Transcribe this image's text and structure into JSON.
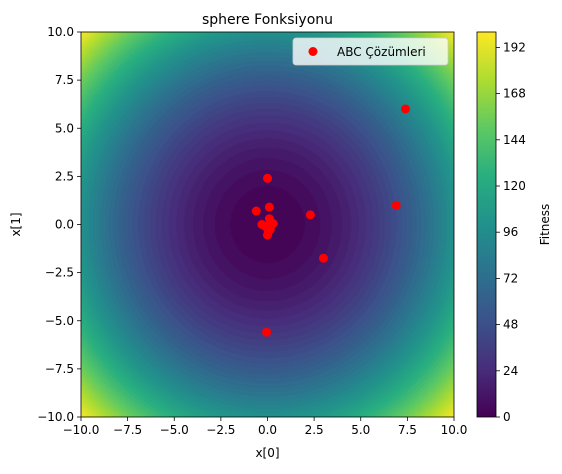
{
  "chart_data": {
    "type": "scatter",
    "background": "contourf",
    "title": "sphere Fonksiyonu",
    "xlabel": "x[0]",
    "ylabel": "x[1]",
    "xlim": [
      -10,
      10
    ],
    "ylim": [
      -10,
      10
    ],
    "xticks": [
      -10,
      -7.5,
      -5,
      -2.5,
      0,
      2.5,
      5,
      7.5,
      10
    ],
    "yticks": [
      -10,
      -7.5,
      -5,
      -2.5,
      0,
      2.5,
      5,
      7.5,
      10
    ],
    "xtick_labels": [
      "−10.0",
      "−7.5",
      "−5.0",
      "−2.5",
      "0.0",
      "2.5",
      "5.0",
      "7.5",
      "10.0"
    ],
    "ytick_labels": [
      "−10.0",
      "−7.5",
      "−5.0",
      "−2.5",
      "0.0",
      "2.5",
      "5.0",
      "7.5",
      "10.0"
    ],
    "grid": false,
    "colormap": "viridis",
    "colorbar": {
      "label": "Fitness",
      "range": [
        0,
        200
      ],
      "ticks": [
        0,
        24,
        48,
        72,
        96,
        120,
        144,
        168,
        192
      ],
      "tick_labels": [
        "0",
        "24",
        "48",
        "72",
        "96",
        "120",
        "144",
        "168",
        "192"
      ]
    },
    "legend": {
      "position": "top-right"
    },
    "series": [
      {
        "name": "ABC Çözümleri",
        "color": "#ff0000",
        "x": [
          7.4,
          6.9,
          2.3,
          3.0,
          0.0,
          0.1,
          -0.6,
          -0.3,
          0.1,
          0.3,
          -0.1,
          0.15,
          0.0,
          0.05,
          -0.05
        ],
        "y": [
          6.0,
          1.0,
          0.5,
          -1.75,
          2.4,
          0.9,
          0.7,
          0.0,
          0.3,
          0.05,
          -0.1,
          -0.25,
          -0.55,
          -0.35,
          -5.6
        ]
      }
    ]
  }
}
